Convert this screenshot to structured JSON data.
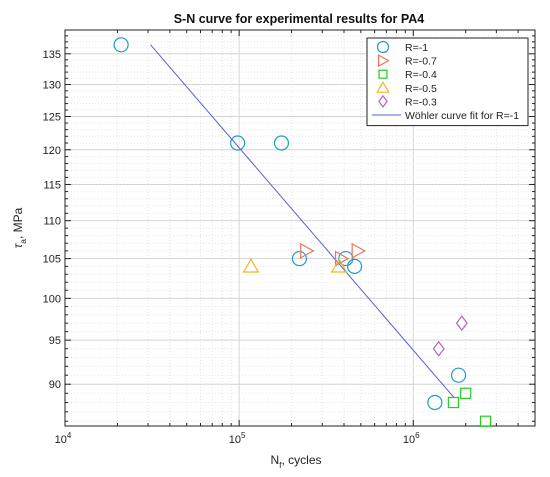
{
  "chart_data": {
    "type": "scatter",
    "title": "S-N curve for experimental results for PA4",
    "xlabel": "N_f, cycles",
    "ylabel": "τ_a, MPa",
    "xscale": "log",
    "yscale": "log",
    "xlim": [
      10000,
      5000000
    ],
    "ylim": [
      85.5,
      139
    ],
    "x_ticks": [
      {
        "value": 10000,
        "base": "10",
        "exp": "4"
      },
      {
        "value": 100000,
        "base": "10",
        "exp": "5"
      },
      {
        "value": 1000000,
        "base": "10",
        "exp": "6"
      }
    ],
    "y_ticks": [
      {
        "value": 90,
        "label": "90"
      },
      {
        "value": 95,
        "label": "95"
      },
      {
        "value": 100,
        "label": "100"
      },
      {
        "value": 105,
        "label": "105"
      },
      {
        "value": 110,
        "label": "110"
      },
      {
        "value": 115,
        "label": "115"
      },
      {
        "value": 120,
        "label": "120"
      },
      {
        "value": 125,
        "label": "125"
      },
      {
        "value": 130,
        "label": "130"
      },
      {
        "value": 135,
        "label": "135"
      }
    ],
    "grid": true,
    "legend_position": "top-right",
    "series": [
      {
        "name": "R=-1",
        "marker": "circle",
        "color": "#1b9ec9",
        "points": [
          [
            21000,
            136.5
          ],
          [
            98000,
            121
          ],
          [
            175000,
            121
          ],
          [
            222000,
            105
          ],
          [
            410000,
            105
          ],
          [
            460000,
            104
          ],
          [
            1330000,
            88
          ],
          [
            1820000,
            91
          ]
        ]
      },
      {
        "name": "R=-0.7",
        "marker": "triangle-right",
        "color": "#e8775a",
        "points": [
          [
            243000,
            106
          ],
          [
            385000,
            105
          ],
          [
            480000,
            106
          ]
        ]
      },
      {
        "name": "R=-0.4",
        "marker": "square",
        "color": "#22cc22",
        "points": [
          [
            1700000,
            88
          ],
          [
            2000000,
            89
          ],
          [
            2600000,
            86
          ]
        ]
      },
      {
        "name": "R=-0.5",
        "marker": "triangle-up",
        "color": "#f2b61d",
        "points": [
          [
            117000,
            104
          ],
          [
            375000,
            104
          ]
        ]
      },
      {
        "name": "R=-0.3",
        "marker": "diamond",
        "color": "#b267b8",
        "points": [
          [
            1400000,
            94
          ],
          [
            1900000,
            97
          ]
        ]
      }
    ],
    "fit_line": {
      "name": "Wöhler curve fit for R=-1",
      "color": "#5a5fd0",
      "points": [
        [
          31000,
          136.5
        ],
        [
          1720000,
          88.5
        ]
      ]
    }
  }
}
